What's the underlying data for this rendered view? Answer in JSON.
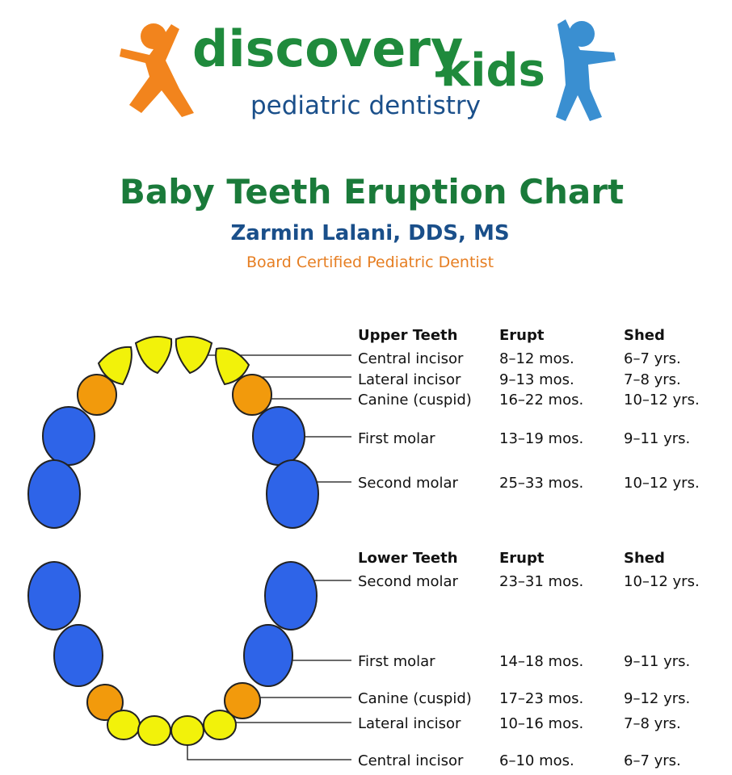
{
  "logo": {
    "word1": "discovery",
    "word2": "kids",
    "tagline": "pediatric dentistry"
  },
  "header": {
    "title": "Baby Teeth Eruption Chart",
    "author": "Zarmin Lalani, DDS, MS",
    "credential": "Board Certified Pediatric Dentist"
  },
  "upper": {
    "headers": [
      "Upper Teeth",
      "Erupt",
      "Shed"
    ],
    "rows": [
      [
        "Central incisor",
        "8–12 mos.",
        "6–7 yrs."
      ],
      [
        "Lateral incisor",
        "9–13 mos.",
        "7–8 yrs."
      ],
      [
        "Canine (cuspid)",
        "16–22 mos.",
        "10–12 yrs."
      ],
      [
        "First molar",
        "13–19 mos.",
        "9–11 yrs."
      ],
      [
        "Second molar",
        "25–33 mos.",
        "10–12 yrs."
      ]
    ]
  },
  "lower": {
    "headers": [
      "Lower Teeth",
      "Erupt",
      "Shed"
    ],
    "rows": [
      [
        "Second molar",
        "23–31 mos.",
        "10–12 yrs."
      ],
      [
        "First molar",
        "14–18 mos.",
        "9–11 yrs."
      ],
      [
        "Canine (cuspid)",
        "17–23 mos.",
        "9–12 yrs."
      ],
      [
        "Lateral incisor",
        "10–16 mos.",
        "7–8 yrs."
      ],
      [
        "Central incisor",
        "6–10 mos.",
        "6–7 yrs."
      ]
    ]
  }
}
